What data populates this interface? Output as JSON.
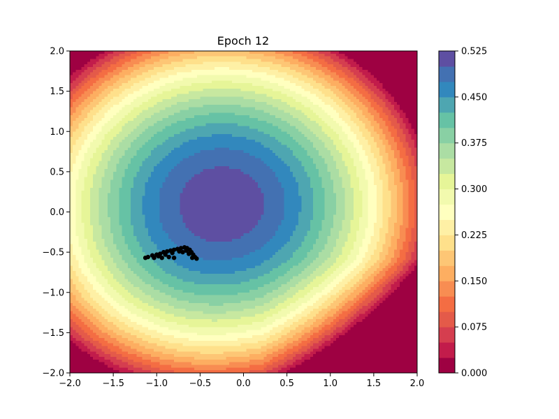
{
  "chart_data": {
    "type": "heatmap",
    "subtype": "filled-contour",
    "title": "Epoch 12",
    "xlabel": "",
    "ylabel": "",
    "xlim": [
      -2.0,
      2.0
    ],
    "ylim": [
      -2.0,
      2.0
    ],
    "x_ticks": [
      "−2.0",
      "−1.5",
      "−1.0",
      "−0.5",
      "0.0",
      "0.5",
      "1.0",
      "1.5",
      "2.0"
    ],
    "y_ticks": [
      "−2.0",
      "−1.5",
      "−1.0",
      "−0.5",
      "0.0",
      "0.5",
      "1.0",
      "1.5",
      "2.0"
    ],
    "colormap": "Spectral",
    "levels": [
      0.0,
      0.025,
      0.05,
      0.075,
      0.1,
      0.125,
      0.15,
      0.175,
      0.2,
      0.225,
      0.25,
      0.275,
      0.3,
      0.325,
      0.35,
      0.375,
      0.4,
      0.425,
      0.45,
      0.475,
      0.5,
      0.525
    ],
    "colors": [
      "#9e0142",
      "#c21c4b",
      "#d53e4f",
      "#e45a49",
      "#f46d43",
      "#f88d52",
      "#fdae61",
      "#fdc675",
      "#fee08b",
      "#fef0a5",
      "#ffffbf",
      "#f2faae",
      "#e6f598",
      "#c7e8a0",
      "#abdda4",
      "#89d0a4",
      "#66c2a5",
      "#4ea6b1",
      "#3288bd",
      "#4371b2",
      "#5e4fa2"
    ],
    "colorbar_ticks": [
      "0.000",
      "0.075",
      "0.150",
      "0.225",
      "0.300",
      "0.375",
      "0.450",
      "0.525"
    ],
    "colorbar_tick_values": [
      0.0,
      0.075,
      0.15,
      0.225,
      0.3,
      0.375,
      0.45,
      0.525
    ],
    "surface_center": [
      -0.25,
      0.1
    ],
    "surface_peak": 0.52,
    "scatter": {
      "color": "#000000",
      "points": [
        [
          -1.1,
          -0.56
        ],
        [
          -1.05,
          -0.54
        ],
        [
          -1.0,
          -0.53
        ],
        [
          -0.96,
          -0.52
        ],
        [
          -0.92,
          -0.5
        ],
        [
          -0.88,
          -0.49
        ],
        [
          -0.84,
          -0.48
        ],
        [
          -0.8,
          -0.47
        ],
        [
          -0.76,
          -0.46
        ],
        [
          -0.72,
          -0.45
        ],
        [
          -0.68,
          -0.44
        ],
        [
          -0.65,
          -0.45
        ],
        [
          -0.62,
          -0.47
        ],
        [
          -0.6,
          -0.5
        ],
        [
          -0.58,
          -0.53
        ],
        [
          -0.56,
          -0.56
        ],
        [
          -0.54,
          -0.58
        ],
        [
          -0.98,
          -0.55
        ],
        [
          -0.9,
          -0.53
        ],
        [
          -0.82,
          -0.51
        ],
        [
          -0.74,
          -0.49
        ],
        [
          -0.66,
          -0.48
        ],
        [
          -0.63,
          -0.52
        ],
        [
          -0.59,
          -0.57
        ],
        [
          -1.03,
          -0.57
        ],
        [
          -0.94,
          -0.57
        ],
        [
          -0.86,
          -0.56
        ],
        [
          -0.8,
          -0.57
        ],
        [
          -1.13,
          -0.57
        ],
        [
          -0.7,
          -0.5
        ]
      ]
    }
  }
}
